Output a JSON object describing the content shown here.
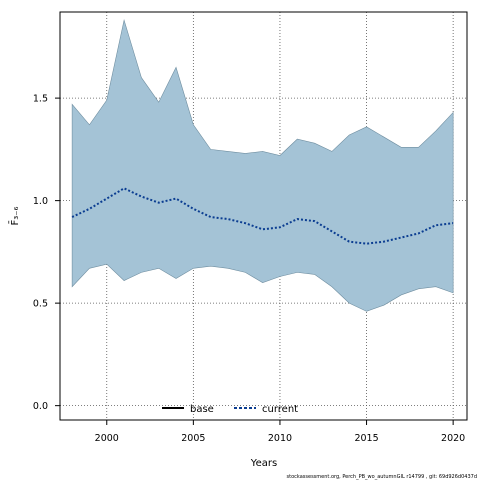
{
  "chart_data": {
    "type": "area",
    "xlabel": "Years",
    "ylabel": "F̄₃₋₆",
    "xlim": [
      1997.3,
      20.8
    ],
    "ylim": [
      -0.07,
      1.92
    ],
    "x_ticks": [
      "2000",
      "2005",
      "2010",
      "2015",
      "2020"
    ],
    "y_ticks": [
      "0.0",
      "0.5",
      "1.0",
      "1.5"
    ],
    "grid": true,
    "legend_placement": "bottom-center",
    "years": [
      1998,
      1999,
      2000,
      2001,
      2002,
      2003,
      2004,
      2005,
      2006,
      2007,
      2008,
      2009,
      2010,
      2011,
      2012,
      2013,
      2014,
      2015,
      2016,
      2017,
      2018,
      2019,
      2020
    ],
    "series": [
      {
        "name": "base",
        "color": "#000000",
        "style": "solid",
        "values": []
      },
      {
        "name": "current",
        "color": "#0b3d91",
        "style": "dotted",
        "values": [
          0.92,
          0.96,
          1.01,
          1.06,
          1.02,
          0.99,
          1.01,
          0.96,
          0.92,
          0.91,
          0.89,
          0.86,
          0.87,
          0.91,
          0.9,
          0.85,
          0.8,
          0.79,
          0.8,
          0.82,
          0.84,
          0.88,
          0.89
        ],
        "upper": [
          1.47,
          1.37,
          1.49,
          1.88,
          1.6,
          1.48,
          1.65,
          1.37,
          1.25,
          1.24,
          1.23,
          1.24,
          1.22,
          1.3,
          1.28,
          1.24,
          1.32,
          1.36,
          1.31,
          1.26,
          1.26,
          1.34,
          1.43
        ],
        "lower": [
          0.58,
          0.67,
          0.69,
          0.61,
          0.65,
          0.67,
          0.62,
          0.67,
          0.68,
          0.67,
          0.65,
          0.6,
          0.63,
          0.65,
          0.64,
          0.58,
          0.5,
          0.46,
          0.49,
          0.54,
          0.57,
          0.58,
          0.55
        ]
      }
    ],
    "band_color": "#a4c3d6",
    "band_edge_color": "#6f8ea0"
  },
  "footer": {
    "note": "stockassessment.org, Perch_PB_wo_autumnGIL r14799 , git: 69d926d0437d"
  }
}
